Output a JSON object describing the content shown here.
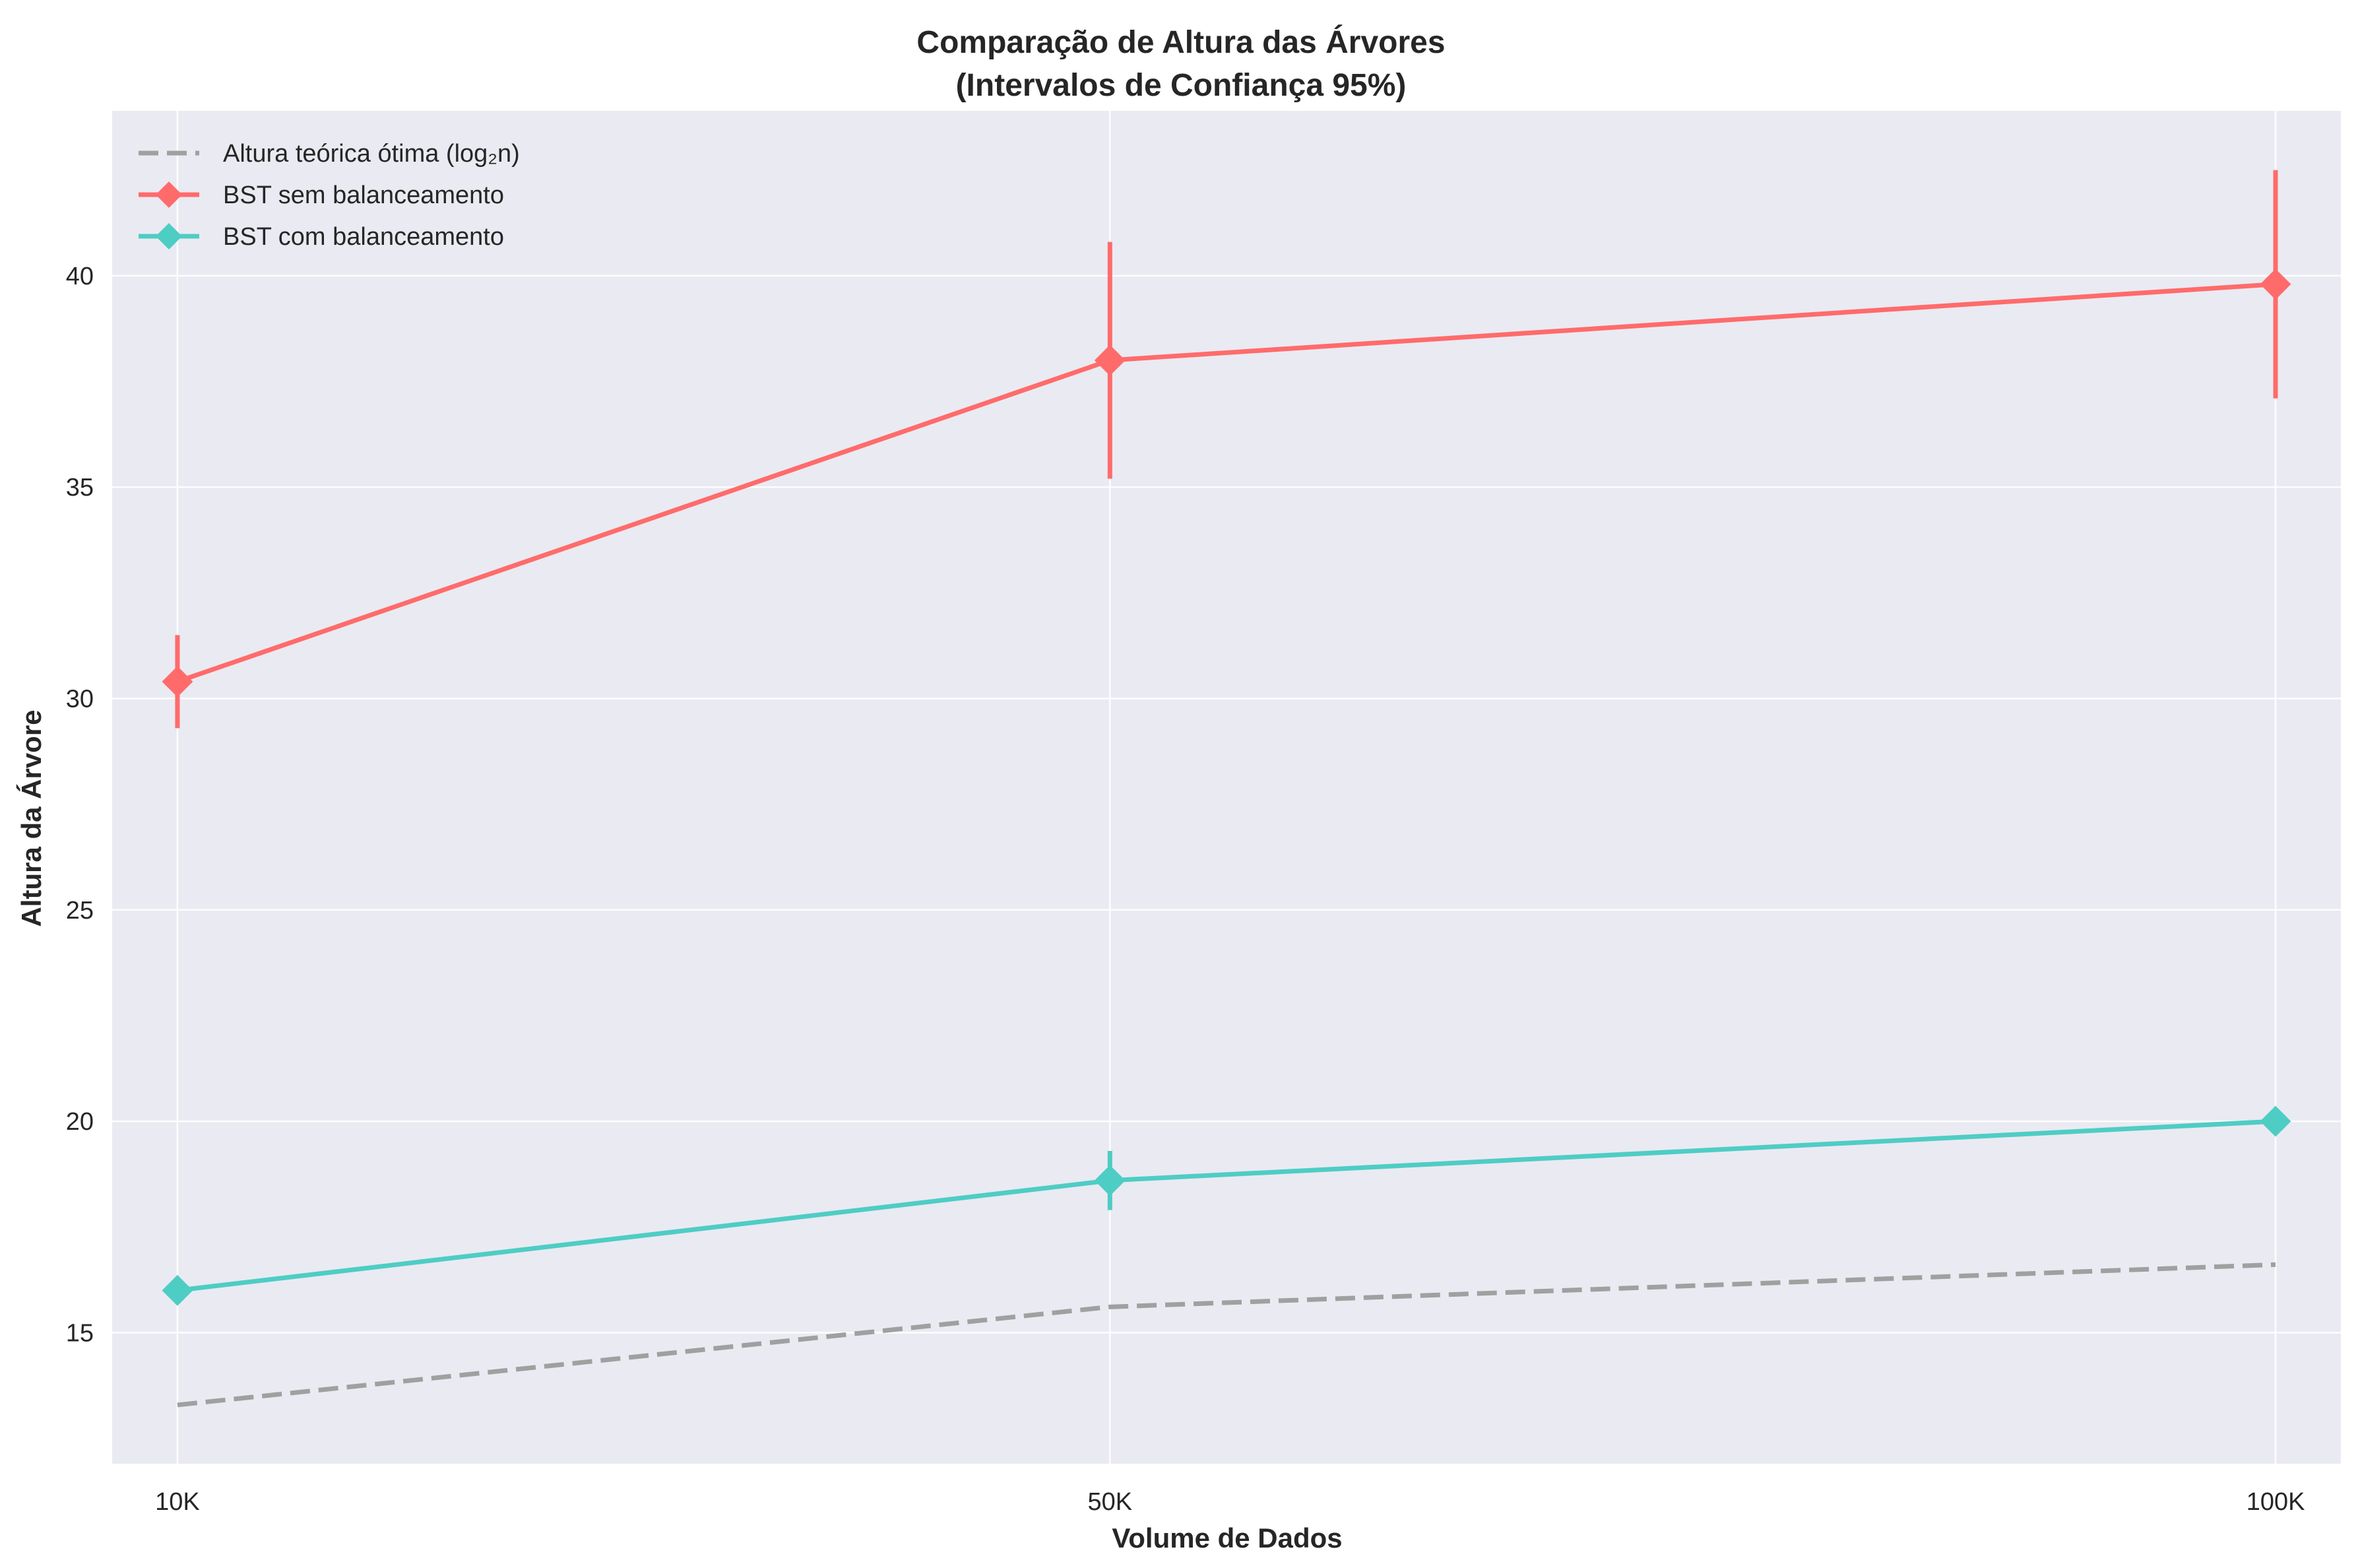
{
  "chart_data": {
    "type": "line",
    "title": "Comparação de Altura das Árvores",
    "subtitle": "(Intervalos de Confiança 95%)",
    "xlabel": "Volume de Dados",
    "ylabel": "Altura da Árvore",
    "x": [
      10000,
      50000,
      100000
    ],
    "x_tick_labels": [
      "10K",
      "50K",
      "100K"
    ],
    "xlim": [
      7200,
      102800
    ],
    "ylim": [
      11.9,
      43.9
    ],
    "y_ticks": [
      15,
      20,
      25,
      30,
      35,
      40
    ],
    "grid": true,
    "legend_position": "top-left",
    "series": [
      {
        "name": "Altura teórica ótima (log₂n)",
        "style": "dashed",
        "color": "#a0a0a0",
        "values": [
          13.29,
          15.61,
          16.61
        ]
      },
      {
        "name": "BST sem balanceamento",
        "style": "solid-diamond",
        "color": "#ff6b6b",
        "values": [
          30.4,
          38.0,
          39.8
        ],
        "ci": [
          [
            29.3,
            31.5
          ],
          [
            35.2,
            40.8
          ],
          [
            37.1,
            42.5
          ]
        ]
      },
      {
        "name": "BST com balanceamento",
        "style": "solid-diamond",
        "color": "#4ecdc4",
        "values": [
          16.0,
          18.6,
          20.0
        ],
        "ci": [
          [
            16.0,
            16.0
          ],
          [
            17.9,
            19.3
          ],
          [
            20.0,
            20.0
          ]
        ]
      }
    ],
    "colors": {
      "plot_background": "#eaeaf2",
      "grid": "#ffffff",
      "text": "#262626"
    }
  }
}
